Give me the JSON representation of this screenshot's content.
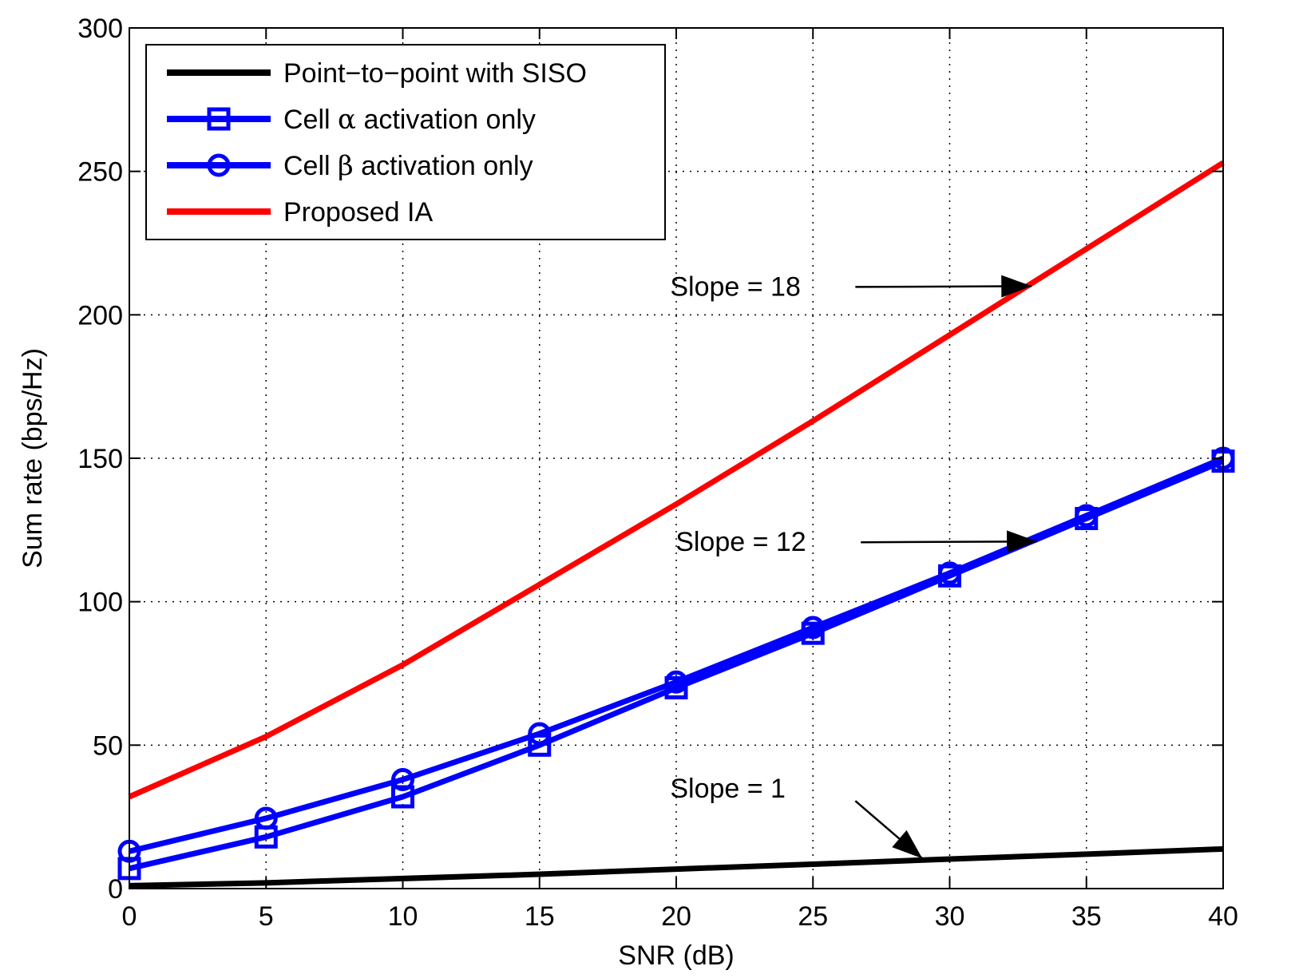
{
  "chart_data": {
    "type": "line",
    "title": "",
    "xlabel": "SNR (dB)",
    "ylabel": "Sum rate (bps/Hz)",
    "xlim": [
      0,
      40
    ],
    "ylim": [
      0,
      300
    ],
    "xticks": [
      0,
      5,
      10,
      15,
      20,
      25,
      30,
      35,
      40
    ],
    "yticks": [
      0,
      50,
      100,
      150,
      200,
      250,
      300
    ],
    "xtick_labels": [
      "0",
      "5",
      "10",
      "15",
      "20",
      "25",
      "30",
      "35",
      "40"
    ],
    "ytick_labels": [
      "0",
      "50",
      "100",
      "150",
      "200",
      "250",
      "300"
    ],
    "grid": true,
    "legend_position": "top-left",
    "series": [
      {
        "name": "Point−to−point with SISO",
        "color": "#000000",
        "marker": "none",
        "x": [
          0,
          5,
          10,
          15,
          20,
          25,
          30,
          35,
          40
        ],
        "y": [
          1,
          2,
          3.5,
          5,
          6.8,
          8.5,
          10.3,
          12,
          13.8
        ]
      },
      {
        "name": "Cell α activation only",
        "name_prefix": "Cell ",
        "name_symbol": "α",
        "name_suffix": " activation only",
        "color": "#0000ff",
        "marker": "square",
        "x": [
          0,
          5,
          10,
          15,
          20,
          25,
          30,
          35,
          40
        ],
        "y": [
          7,
          18,
          32,
          50,
          70,
          89,
          109,
          129,
          149
        ]
      },
      {
        "name": "Cell β activation only",
        "name_prefix": "Cell ",
        "name_symbol": "β",
        "name_suffix": " activation only",
        "color": "#0000ff",
        "marker": "circle",
        "x": [
          0,
          5,
          10,
          15,
          20,
          25,
          30,
          35,
          40
        ],
        "y": [
          13,
          24.5,
          38,
          54,
          72,
          91,
          110,
          130,
          150
        ]
      },
      {
        "name": "Proposed IA",
        "color": "#ff0000",
        "marker": "none",
        "x": [
          0,
          5,
          10,
          15,
          20,
          25,
          30,
          35,
          40
        ],
        "y": [
          32,
          53,
          78,
          106,
          134,
          163,
          193,
          223,
          253
        ]
      }
    ],
    "annotations": [
      {
        "text": "Slope = 18",
        "text_at": [
          26.2,
          210
        ],
        "arrow_to": [
          33,
          210
        ]
      },
      {
        "text": "Slope = 12",
        "text_at": [
          26.4,
          121
        ],
        "arrow_to": [
          33.2,
          121
        ]
      },
      {
        "text": "Slope = 1",
        "text_at": [
          26.2,
          35
        ],
        "arrow_to": [
          29,
          10.5
        ]
      }
    ]
  }
}
